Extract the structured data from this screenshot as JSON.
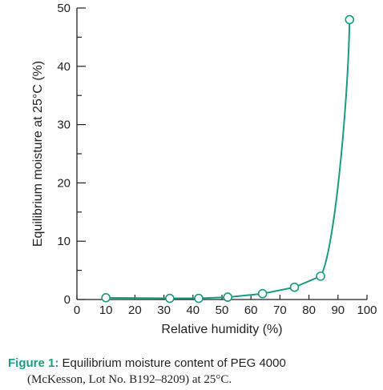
{
  "chart_data": {
    "type": "line",
    "xlabel": "Relative humidity (%)",
    "ylabel": "Equilibrium moisture at 25°C (%)",
    "xlim": [
      0,
      100
    ],
    "ylim": [
      0,
      50
    ],
    "x_ticks": [
      0,
      10,
      20,
      30,
      40,
      50,
      60,
      70,
      80,
      90,
      100
    ],
    "y_ticks": [
      0,
      10,
      20,
      30,
      40,
      50
    ],
    "series": [
      {
        "x": [
          10,
          32,
          42,
          52,
          64,
          75,
          84,
          94
        ],
        "y": [
          0.3,
          0.2,
          0.2,
          0.4,
          1.0,
          2.1,
          4.0,
          48.0
        ]
      }
    ],
    "line_color": "#1a9b82",
    "marker": "open-circle",
    "grid": false
  },
  "caption": {
    "label": "Figure 1:",
    "line1": " Equilibrium moisture content of PEG 4000",
    "line2": "(McKesson, Lot No. B192–8209) at 25°C."
  }
}
